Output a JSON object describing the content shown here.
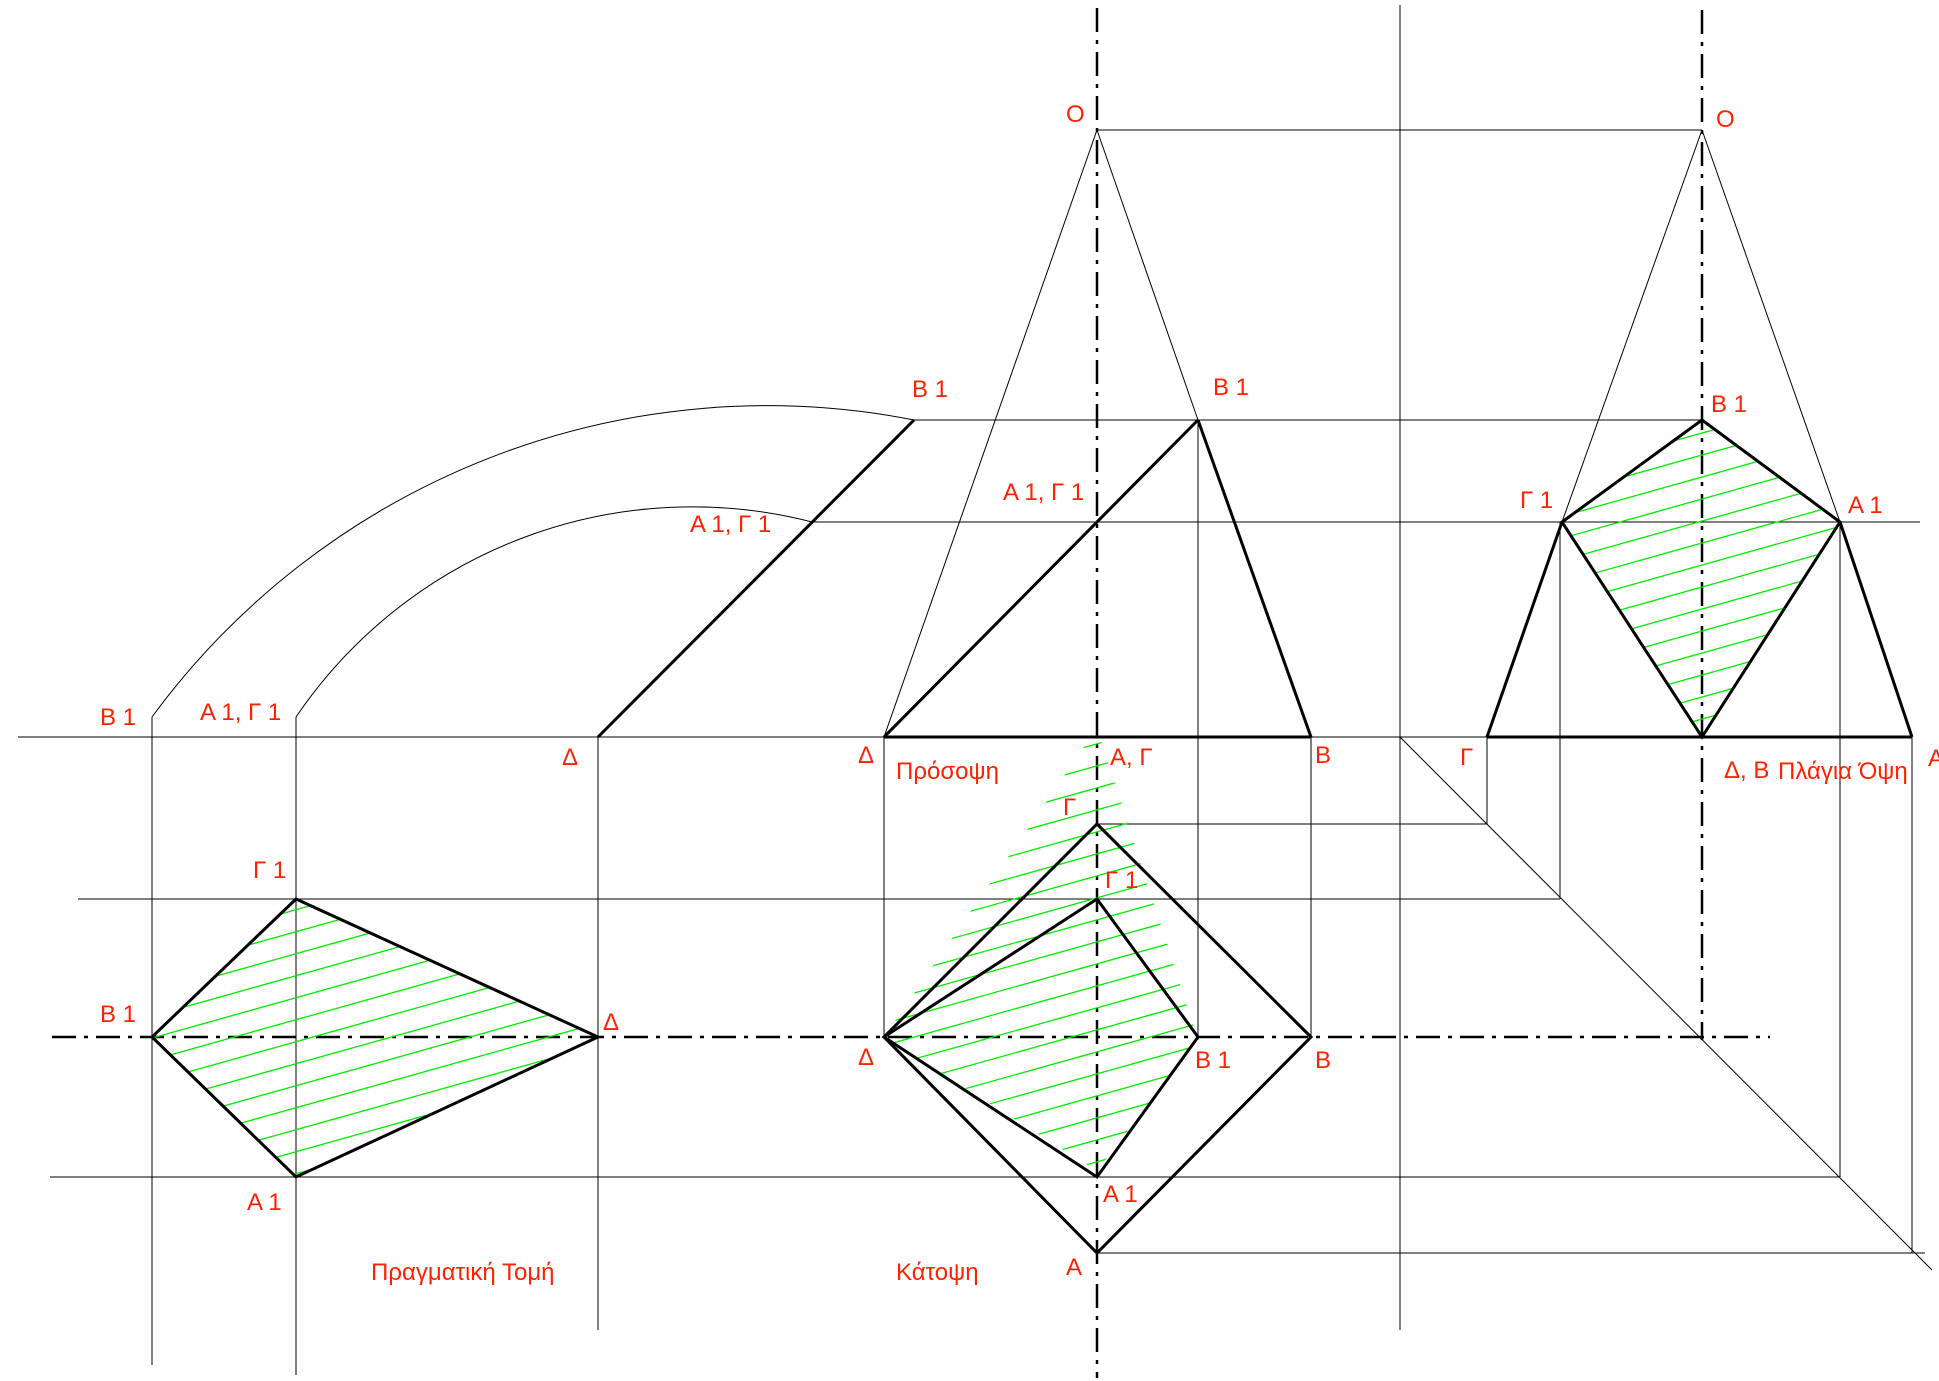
{
  "colors": {
    "label": "#ff2200",
    "hatch": "#00ee00",
    "line": "#000000",
    "background": "#ffffff"
  },
  "views": {
    "front": "Πρόσοψη",
    "side": "Πλάγια Όψη",
    "plan": "Κάτοψη",
    "true_section": "Πραγματική Τομή"
  },
  "points": {
    "front": {
      "apex": "O",
      "b1": "B 1",
      "a1_g1": "A 1, Γ 1",
      "delta": "Δ",
      "a_g": "A, Γ",
      "b": "B"
    },
    "side": {
      "apex": "O",
      "b1": "B 1",
      "g1": "Γ 1",
      "a1": "A 1",
      "gamma": "Γ",
      "delta_b": "Δ, B",
      "a_edge": "A"
    },
    "plan": {
      "gamma": "Γ",
      "g1": "Γ 1",
      "delta": "Δ",
      "b1": "B 1",
      "b": "B",
      "a1": "A 1",
      "a": "A"
    },
    "rotation": {
      "b1": "B 1",
      "a1_g1": "A 1, Γ 1",
      "delta": "Δ"
    },
    "true_section": {
      "b1_top": "B 1",
      "a1_g1_top": "A 1, Γ 1",
      "g1": "Γ 1",
      "b1": "B 1",
      "delta": "Δ",
      "a1": "A 1"
    }
  }
}
